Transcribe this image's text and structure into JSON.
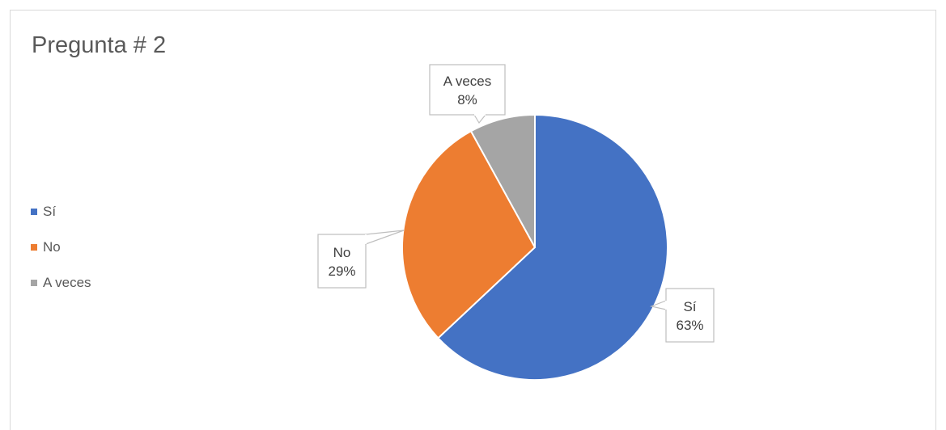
{
  "chart_data": {
    "type": "pie",
    "title": "Pregunta # 2",
    "categories": [
      "Sí",
      "No",
      "A veces"
    ],
    "values": [
      63,
      29,
      8
    ],
    "value_labels": [
      "63%",
      "29%",
      "8%"
    ],
    "colors": [
      "#4472C4",
      "#ED7D31",
      "#A5A5A5"
    ],
    "legend_position": "left",
    "start_angle_deg": 0,
    "direction": "clockwise"
  }
}
